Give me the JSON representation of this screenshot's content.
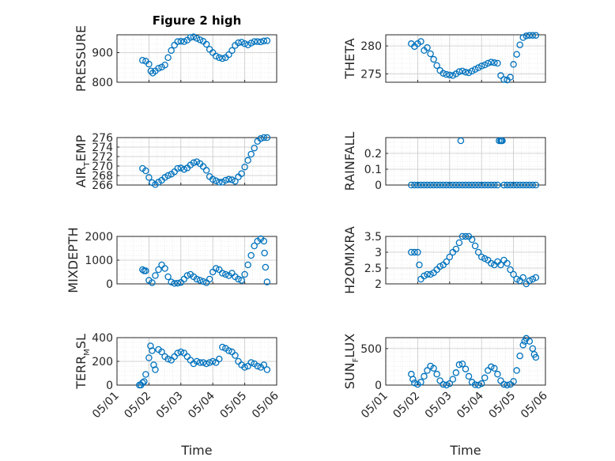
{
  "figure_title": "Figure 2 high",
  "colors": {
    "marker": "#0072BD",
    "axis": "#262626",
    "grid": "#c8c8c8",
    "minor_grid": "#dcdcdc"
  },
  "x_axis": {
    "label": "Time",
    "range": [
      "2016-05-01",
      "2016-05-06"
    ],
    "tick_labels": [
      "05/01",
      "05/02",
      "05/03",
      "05/04",
      "05/05",
      "05/06"
    ]
  },
  "chart_data": [
    {
      "type": "scatter",
      "ylabel": "PRESSURE",
      "ylim": [
        800,
        960
      ],
      "yticks": [
        800,
        900
      ],
      "grid": true,
      "x": [
        1.8,
        1.9,
        2.0,
        2.06,
        2.12,
        2.2,
        2.3,
        2.4,
        2.5,
        2.6,
        2.7,
        2.8,
        2.9,
        3.0,
        3.1,
        3.2,
        3.3,
        3.4,
        3.5,
        3.6,
        3.7,
        3.8,
        3.9,
        4.0,
        4.1,
        4.2,
        4.3,
        4.4,
        4.5,
        4.6,
        4.7,
        4.8,
        4.9,
        5.0,
        5.1,
        5.2,
        5.3,
        5.4,
        5.5,
        5.6,
        5.7
      ],
      "y": [
        874,
        871,
        861,
        838,
        831,
        838,
        847,
        851,
        858,
        883,
        907,
        925,
        937,
        938,
        937,
        942,
        951,
        953,
        948,
        943,
        938,
        928,
        911,
        900,
        888,
        883,
        880,
        883,
        893,
        907,
        924,
        933,
        935,
        930,
        926,
        932,
        937,
        937,
        936,
        939,
        940
      ]
    },
    {
      "type": "scatter",
      "ylabel": "THETA",
      "ylim": [
        273.5,
        282
      ],
      "yticks": [
        275,
        280
      ],
      "grid": true,
      "x": [
        1.8,
        1.9,
        2.0,
        2.1,
        2.2,
        2.3,
        2.4,
        2.5,
        2.6,
        2.7,
        2.8,
        2.9,
        3.0,
        3.1,
        3.2,
        3.3,
        3.4,
        3.5,
        3.6,
        3.7,
        3.8,
        3.9,
        4.0,
        4.1,
        4.2,
        4.3,
        4.4,
        4.5,
        4.6,
        4.7,
        4.8,
        4.9,
        5.0,
        5.1,
        5.2,
        5.3,
        5.4,
        5.5,
        5.6,
        5.7
      ],
      "y": [
        280.4,
        279.9,
        280.4,
        280.8,
        279.2,
        279.7,
        278.6,
        277.6,
        276.5,
        275.6,
        275.1,
        274.9,
        274.8,
        274.7,
        275.0,
        275.4,
        275.5,
        275.3,
        275.2,
        275.5,
        275.8,
        276.1,
        276.4,
        276.6,
        276.9,
        277.1,
        277.0,
        276.9,
        274.7,
        274.0,
        273.9,
        274.4,
        276.7,
        278.5,
        280.2,
        281.5,
        281.8,
        281.9,
        281.9,
        281.9
      ]
    },
    {
      "type": "scatter",
      "ylabel": "AIR_TEMP",
      "ylim": [
        266,
        276
      ],
      "yticks": [
        266,
        268,
        270,
        272,
        274,
        276
      ],
      "grid": true,
      "x": [
        1.8,
        1.9,
        2.0,
        2.1,
        2.2,
        2.3,
        2.4,
        2.5,
        2.6,
        2.7,
        2.8,
        2.9,
        3.0,
        3.1,
        3.2,
        3.3,
        3.4,
        3.5,
        3.6,
        3.7,
        3.8,
        3.9,
        4.0,
        4.1,
        4.2,
        4.3,
        4.4,
        4.5,
        4.6,
        4.7,
        4.8,
        4.9,
        5.0,
        5.1,
        5.2,
        5.3,
        5.4,
        5.5,
        5.6,
        5.7
      ],
      "y": [
        269.5,
        269.0,
        267.6,
        266.5,
        266.1,
        266.6,
        267.0,
        267.6,
        268.0,
        268.3,
        268.8,
        269.5,
        269.6,
        269.3,
        269.6,
        270.2,
        270.7,
        270.9,
        270.5,
        269.9,
        269.1,
        267.8,
        267.2,
        266.9,
        266.6,
        266.6,
        267.0,
        267.2,
        267.1,
        266.8,
        267.7,
        268.4,
        269.8,
        271.2,
        272.5,
        273.8,
        275.2,
        275.8,
        276.0,
        276.0
      ]
    },
    {
      "type": "scatter",
      "ylabel": "RAINFALL",
      "ylim": [
        0,
        0.3
      ],
      "yticks": [
        0,
        0.1,
        0.2
      ],
      "grid": true,
      "x": [
        1.8,
        1.9,
        2.0,
        2.1,
        2.2,
        2.3,
        2.4,
        2.5,
        2.6,
        2.7,
        2.8,
        2.9,
        3.0,
        3.1,
        3.2,
        3.3,
        3.35,
        3.4,
        3.5,
        3.6,
        3.7,
        3.8,
        3.9,
        4.0,
        4.1,
        4.2,
        4.3,
        4.4,
        4.5,
        4.55,
        4.6,
        4.62,
        4.65,
        4.7,
        4.8,
        4.9,
        5.0,
        5.1,
        5.2,
        5.3,
        5.4,
        5.5,
        5.6,
        5.7
      ],
      "y": [
        0,
        0,
        0,
        0,
        0,
        0,
        0,
        0,
        0,
        0,
        0,
        0,
        0,
        0,
        0,
        0,
        0.28,
        0,
        0,
        0,
        0,
        0,
        0,
        0,
        0,
        0,
        0,
        0,
        0,
        0.28,
        0.28,
        0.28,
        0.28,
        0,
        0,
        0,
        0,
        0,
        0,
        0,
        0,
        0,
        0,
        0
      ]
    },
    {
      "type": "scatter",
      "ylabel": "MIXDEPTH",
      "ylim": [
        0,
        2000
      ],
      "yticks": [
        0,
        1000,
        2000
      ],
      "grid": true,
      "x": [
        1.8,
        1.85,
        1.9,
        2.0,
        2.1,
        2.2,
        2.3,
        2.4,
        2.5,
        2.6,
        2.7,
        2.8,
        2.9,
        3.0,
        3.1,
        3.2,
        3.3,
        3.4,
        3.5,
        3.6,
        3.7,
        3.8,
        3.9,
        4.0,
        4.1,
        4.2,
        4.3,
        4.4,
        4.5,
        4.6,
        4.7,
        4.8,
        4.9,
        5.0,
        5.1,
        5.2,
        5.3,
        5.4,
        5.5,
        5.6,
        5.62,
        5.65,
        5.7
      ],
      "y": [
        600,
        550,
        550,
        150,
        50,
        350,
        600,
        800,
        650,
        300,
        80,
        20,
        30,
        60,
        200,
        350,
        400,
        300,
        200,
        150,
        100,
        50,
        200,
        500,
        650,
        600,
        450,
        400,
        350,
        450,
        300,
        200,
        150,
        400,
        800,
        1200,
        1600,
        1800,
        1900,
        1800,
        1300,
        700,
        80
      ]
    },
    {
      "type": "scatter",
      "ylabel": "H2OMIXRA",
      "ylim": [
        2,
        3.5
      ],
      "yticks": [
        2,
        2.5,
        3,
        3.5
      ],
      "grid": true,
      "x": [
        1.8,
        1.9,
        2.0,
        2.05,
        2.1,
        2.2,
        2.3,
        2.4,
        2.5,
        2.6,
        2.7,
        2.8,
        2.9,
        3.0,
        3.1,
        3.2,
        3.3,
        3.4,
        3.5,
        3.6,
        3.7,
        3.8,
        3.9,
        4.0,
        4.1,
        4.2,
        4.3,
        4.4,
        4.5,
        4.6,
        4.7,
        4.8,
        4.9,
        5.0,
        5.1,
        5.2,
        5.3,
        5.4,
        5.5,
        5.6,
        5.7
      ],
      "y": [
        3.0,
        3.0,
        3.0,
        2.6,
        2.15,
        2.25,
        2.3,
        2.3,
        2.35,
        2.45,
        2.55,
        2.6,
        2.7,
        2.85,
        3.0,
        3.1,
        3.3,
        3.5,
        3.5,
        3.5,
        3.4,
        3.2,
        3.0,
        2.85,
        2.8,
        2.75,
        2.65,
        2.6,
        2.7,
        2.6,
        2.75,
        2.65,
        2.45,
        2.3,
        2.15,
        2.1,
        2.2,
        2.0,
        2.1,
        2.15,
        2.2
      ]
    },
    {
      "type": "scatter",
      "ylabel": "TERR_MSL",
      "ylim": [
        0,
        400
      ],
      "yticks": [
        0,
        200,
        400
      ],
      "grid": true,
      "x": [
        1.7,
        1.75,
        1.8,
        1.85,
        1.9,
        2.0,
        2.05,
        2.1,
        2.15,
        2.2,
        2.3,
        2.4,
        2.5,
        2.6,
        2.7,
        2.8,
        2.9,
        3.0,
        3.1,
        3.2,
        3.3,
        3.4,
        3.5,
        3.6,
        3.7,
        3.8,
        3.9,
        4.0,
        4.1,
        4.2,
        4.3,
        4.4,
        4.5,
        4.6,
        4.7,
        4.8,
        4.9,
        5.0,
        5.1,
        5.2,
        5.3,
        5.4,
        5.5,
        5.6,
        5.7
      ],
      "y": [
        0,
        0,
        20,
        30,
        90,
        230,
        330,
        290,
        170,
        130,
        300,
        280,
        240,
        220,
        210,
        240,
        270,
        280,
        270,
        240,
        210,
        180,
        200,
        190,
        190,
        180,
        190,
        200,
        190,
        220,
        320,
        310,
        290,
        280,
        250,
        200,
        170,
        150,
        160,
        190,
        180,
        160,
        150,
        170,
        130
      ]
    },
    {
      "type": "scatter",
      "ylabel": "SUN_FLUX",
      "ylim": [
        0,
        650
      ],
      "yticks": [
        0,
        500
      ],
      "grid": true,
      "x": [
        1.8,
        1.85,
        1.9,
        2.0,
        2.1,
        2.2,
        2.3,
        2.4,
        2.5,
        2.6,
        2.7,
        2.8,
        2.9,
        3.0,
        3.1,
        3.2,
        3.3,
        3.4,
        3.5,
        3.6,
        3.7,
        3.8,
        3.9,
        4.0,
        4.1,
        4.2,
        4.3,
        4.4,
        4.5,
        4.6,
        4.7,
        4.8,
        4.9,
        5.0,
        5.1,
        5.2,
        5.3,
        5.35,
        5.4,
        5.5,
        5.6,
        5.65,
        5.7
      ],
      "y": [
        150,
        80,
        30,
        10,
        40,
        120,
        200,
        260,
        230,
        150,
        60,
        10,
        0,
        20,
        80,
        170,
        280,
        290,
        220,
        120,
        40,
        5,
        0,
        20,
        100,
        200,
        250,
        230,
        150,
        60,
        10,
        0,
        10,
        50,
        200,
        400,
        550,
        600,
        640,
        600,
        500,
        420,
        380
      ]
    }
  ]
}
